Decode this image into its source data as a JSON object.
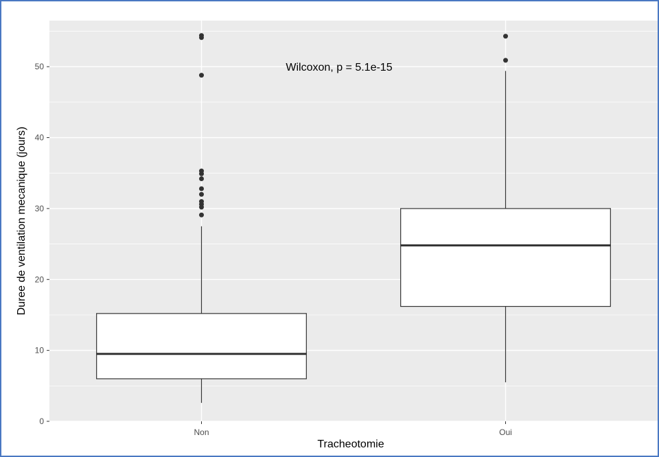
{
  "chart_data": {
    "type": "boxplot",
    "title": "",
    "xlabel": "Tracheotomie",
    "ylabel": "Duree de ventilation mecanique (jours)",
    "ylim": [
      0,
      56.5
    ],
    "yticks": [
      0,
      10,
      20,
      30,
      40,
      50
    ],
    "grid": true,
    "background": "#ebebeb",
    "categories": [
      "Non",
      "Oui"
    ],
    "boxes": [
      {
        "category": "Non",
        "whisker_low": 2.6,
        "q1": 6.0,
        "median": 9.5,
        "q3": 15.2,
        "whisker_high": 27.5,
        "outliers": [
          29.1,
          30.2,
          30.6,
          31.0,
          32.0,
          32.8,
          34.2,
          34.9,
          35.3,
          48.8,
          54.1,
          54.4
        ]
      },
      {
        "category": "Oui",
        "whisker_low": 5.5,
        "q1": 16.2,
        "median": 24.8,
        "q3": 30.0,
        "whisker_high": 49.4,
        "outliers": [
          50.9,
          54.3
        ]
      }
    ],
    "annotation": "Wilcoxon, p = 5.1e-15"
  }
}
